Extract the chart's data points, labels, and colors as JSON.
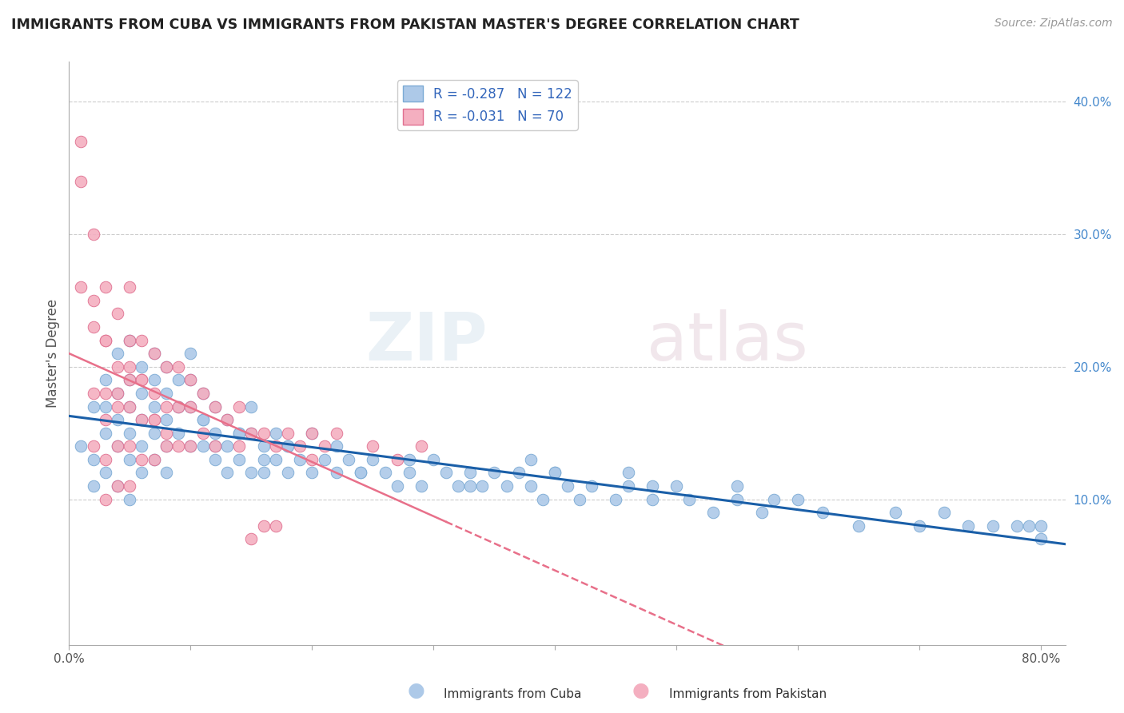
{
  "title": "IMMIGRANTS FROM CUBA VS IMMIGRANTS FROM PAKISTAN MASTER'S DEGREE CORRELATION CHART",
  "source": "Source: ZipAtlas.com",
  "ylabel": "Master's Degree",
  "xlim": [
    0.0,
    0.82
  ],
  "ylim": [
    -0.01,
    0.43
  ],
  "xticks": [
    0.0,
    0.1,
    0.2,
    0.3,
    0.4,
    0.5,
    0.6,
    0.7,
    0.8
  ],
  "xticklabels": [
    "0.0%",
    "",
    "",
    "",
    "",
    "",
    "",
    "",
    "80.0%"
  ],
  "ytick_vals": [
    0.0,
    0.1,
    0.2,
    0.3,
    0.4
  ],
  "yticklabels": [
    "",
    "10.0%",
    "20.0%",
    "30.0%",
    "40.0%"
  ],
  "cuba_color": "#adc9e8",
  "cuba_edge": "#7baad4",
  "pakistan_color": "#f4afc0",
  "pakistan_edge": "#e07090",
  "cuba_line_color": "#1a5fa8",
  "pakistan_line_color": "#e8708a",
  "legend_R_cuba": "R = -0.287",
  "legend_N_cuba": "N = 122",
  "legend_R_pakistan": "R = -0.031",
  "legend_N_pakistan": "N = 70",
  "grid_color": "#cccccc",
  "background_color": "#ffffff",
  "tick_label_color": "#4488cc",
  "cuba_x": [
    0.01,
    0.02,
    0.02,
    0.02,
    0.03,
    0.03,
    0.03,
    0.03,
    0.04,
    0.04,
    0.04,
    0.04,
    0.04,
    0.05,
    0.05,
    0.05,
    0.05,
    0.05,
    0.05,
    0.06,
    0.06,
    0.06,
    0.06,
    0.06,
    0.07,
    0.07,
    0.07,
    0.07,
    0.07,
    0.08,
    0.08,
    0.08,
    0.08,
    0.08,
    0.09,
    0.09,
    0.09,
    0.1,
    0.1,
    0.1,
    0.1,
    0.11,
    0.11,
    0.11,
    0.12,
    0.12,
    0.12,
    0.13,
    0.13,
    0.13,
    0.14,
    0.14,
    0.15,
    0.15,
    0.15,
    0.16,
    0.16,
    0.17,
    0.17,
    0.18,
    0.18,
    0.19,
    0.2,
    0.2,
    0.21,
    0.22,
    0.22,
    0.23,
    0.24,
    0.25,
    0.26,
    0.27,
    0.28,
    0.29,
    0.3,
    0.31,
    0.32,
    0.33,
    0.34,
    0.35,
    0.36,
    0.37,
    0.38,
    0.39,
    0.4,
    0.41,
    0.42,
    0.43,
    0.45,
    0.46,
    0.48,
    0.5,
    0.51,
    0.53,
    0.55,
    0.57,
    0.6,
    0.62,
    0.65,
    0.68,
    0.7,
    0.72,
    0.74,
    0.76,
    0.78,
    0.79,
    0.8,
    0.8,
    0.55,
    0.58,
    0.46,
    0.48,
    0.38,
    0.4,
    0.33,
    0.28,
    0.24,
    0.18,
    0.16,
    0.14,
    0.12,
    0.11
  ],
  "cuba_y": [
    0.14,
    0.17,
    0.13,
    0.11,
    0.19,
    0.17,
    0.15,
    0.12,
    0.21,
    0.18,
    0.16,
    0.14,
    0.11,
    0.22,
    0.19,
    0.17,
    0.15,
    0.13,
    0.1,
    0.2,
    0.18,
    0.16,
    0.14,
    0.12,
    0.21,
    0.19,
    0.17,
    0.15,
    0.13,
    0.2,
    0.18,
    0.16,
    0.14,
    0.12,
    0.19,
    0.17,
    0.15,
    0.21,
    0.19,
    0.17,
    0.14,
    0.18,
    0.16,
    0.14,
    0.17,
    0.15,
    0.13,
    0.16,
    0.14,
    0.12,
    0.15,
    0.13,
    0.17,
    0.15,
    0.12,
    0.14,
    0.12,
    0.15,
    0.13,
    0.14,
    0.12,
    0.13,
    0.15,
    0.12,
    0.13,
    0.14,
    0.12,
    0.13,
    0.12,
    0.13,
    0.12,
    0.11,
    0.12,
    0.11,
    0.13,
    0.12,
    0.11,
    0.12,
    0.11,
    0.12,
    0.11,
    0.12,
    0.11,
    0.1,
    0.12,
    0.11,
    0.1,
    0.11,
    0.1,
    0.11,
    0.1,
    0.11,
    0.1,
    0.09,
    0.1,
    0.09,
    0.1,
    0.09,
    0.08,
    0.09,
    0.08,
    0.09,
    0.08,
    0.08,
    0.08,
    0.08,
    0.07,
    0.08,
    0.11,
    0.1,
    0.12,
    0.11,
    0.13,
    0.12,
    0.11,
    0.13,
    0.12,
    0.14,
    0.13,
    0.15,
    0.14,
    0.16
  ],
  "pakistan_x": [
    0.01,
    0.01,
    0.02,
    0.02,
    0.02,
    0.02,
    0.03,
    0.03,
    0.03,
    0.03,
    0.03,
    0.03,
    0.04,
    0.04,
    0.04,
    0.04,
    0.04,
    0.05,
    0.05,
    0.05,
    0.05,
    0.05,
    0.05,
    0.06,
    0.06,
    0.06,
    0.06,
    0.07,
    0.07,
    0.07,
    0.07,
    0.08,
    0.08,
    0.08,
    0.09,
    0.09,
    0.09,
    0.1,
    0.1,
    0.1,
    0.11,
    0.11,
    0.12,
    0.12,
    0.13,
    0.14,
    0.14,
    0.15,
    0.16,
    0.17,
    0.18,
    0.19,
    0.2,
    0.2,
    0.21,
    0.22,
    0.25,
    0.27,
    0.29,
    0.15,
    0.16,
    0.17,
    0.06,
    0.05,
    0.04,
    0.03,
    0.02,
    0.01,
    0.07,
    0.08
  ],
  "pakistan_y": [
    0.34,
    0.26,
    0.3,
    0.23,
    0.18,
    0.14,
    0.26,
    0.22,
    0.18,
    0.16,
    0.13,
    0.1,
    0.24,
    0.2,
    0.17,
    0.14,
    0.11,
    0.26,
    0.22,
    0.19,
    0.17,
    0.14,
    0.11,
    0.22,
    0.19,
    0.16,
    0.13,
    0.21,
    0.18,
    0.16,
    0.13,
    0.2,
    0.17,
    0.14,
    0.2,
    0.17,
    0.14,
    0.19,
    0.17,
    0.14,
    0.18,
    0.15,
    0.17,
    0.14,
    0.16,
    0.17,
    0.14,
    0.15,
    0.15,
    0.14,
    0.15,
    0.14,
    0.15,
    0.13,
    0.14,
    0.15,
    0.14,
    0.13,
    0.14,
    0.07,
    0.08,
    0.08,
    0.19,
    0.2,
    0.18,
    0.22,
    0.25,
    0.37,
    0.16,
    0.15
  ]
}
